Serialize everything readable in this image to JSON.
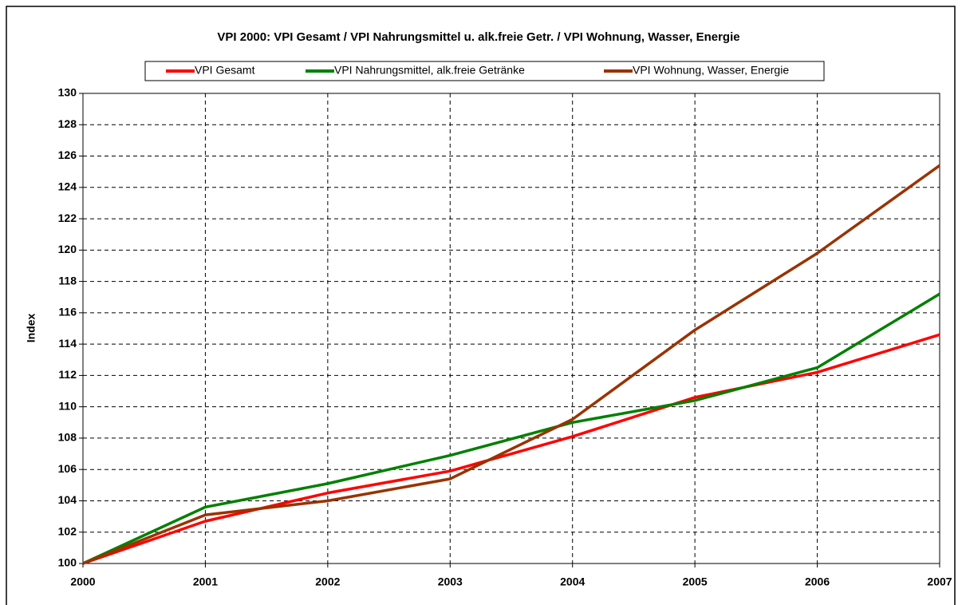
{
  "chart_data": {
    "type": "line",
    "title": "VPI 2000: VPI Gesamt / VPI Nahrungsmittel u. alk.freie Getr. / VPI Wohnung, Wasser, Energie",
    "y_label": "Index",
    "x": [
      2000,
      2001,
      2002,
      2003,
      2004,
      2005,
      2006,
      2007
    ],
    "xlim": [
      2000,
      2007
    ],
    "xticks": [
      2000,
      2001,
      2002,
      2003,
      2004,
      2005,
      2006,
      2007
    ],
    "ylim": [
      100,
      130
    ],
    "yticks": [
      100,
      102,
      104,
      106,
      108,
      110,
      112,
      114,
      116,
      118,
      120,
      122,
      124,
      126,
      128,
      130
    ],
    "grid": true,
    "legend": "top",
    "series": [
      {
        "name": "VPI Gesamt",
        "color": "#ff0000",
        "values": [
          100,
          102.7,
          104.5,
          105.9,
          108.1,
          110.6,
          112.2,
          114.6
        ]
      },
      {
        "name": "VPI Nahrungsmittel, alk.freie Getränke",
        "color": "#008000",
        "values": [
          100,
          103.6,
          105.1,
          106.9,
          109.0,
          110.4,
          112.5,
          117.2
        ]
      },
      {
        "name": "VPI Wohnung, Wasser, Energie",
        "color": "#993300",
        "values": [
          100,
          103.1,
          104.0,
          105.4,
          109.2,
          114.9,
          119.8,
          125.4
        ]
      }
    ]
  }
}
